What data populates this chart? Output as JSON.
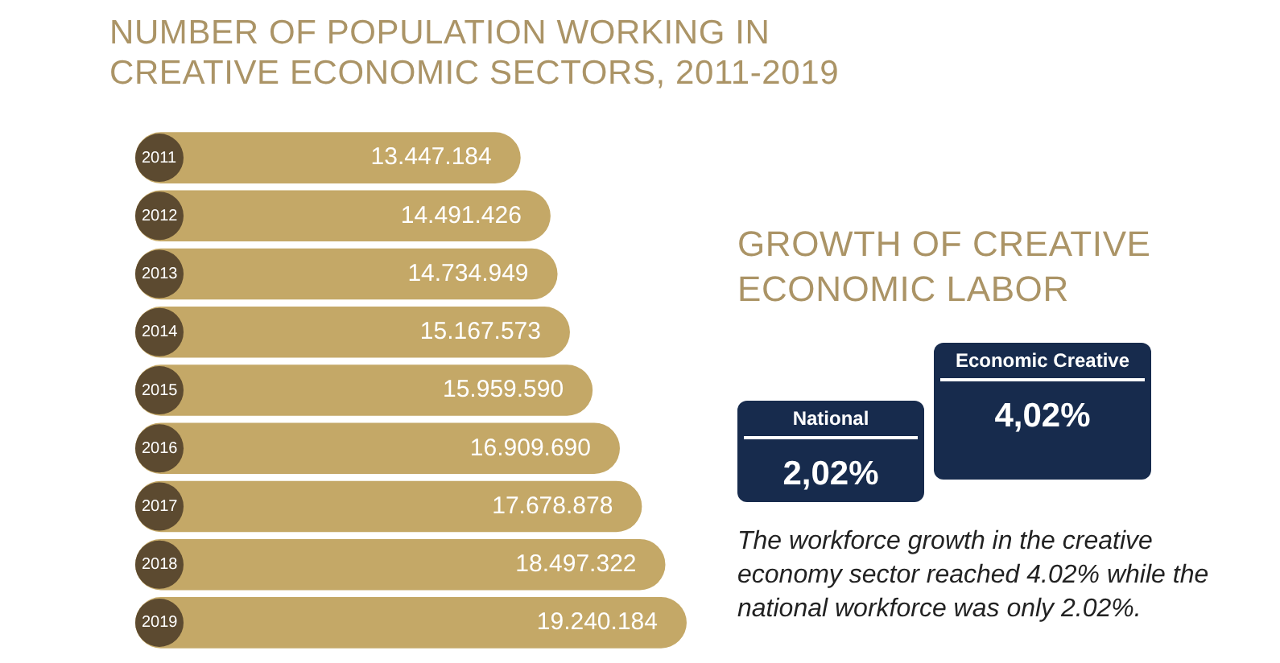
{
  "chart_data": [
    {
      "type": "bar",
      "orientation": "horizontal",
      "title": "NUMBER OF POPULATION WORKING IN CREATIVE ECONOMIC SECTORS, 2011-2019",
      "categories": [
        "2011",
        "2012",
        "2013",
        "2014",
        "2015",
        "2016",
        "2017",
        "2018",
        "2019"
      ],
      "values": [
        13447184,
        14491426,
        14734949,
        15167573,
        15959590,
        16909690,
        17678878,
        18497322,
        19240184
      ],
      "value_labels": [
        "13.447.184",
        "14.491.426",
        "14.734.949",
        "15.167.573",
        "15.959.590",
        "16.909.690",
        "17.678.878",
        "18.497.322",
        "19.240.184"
      ],
      "color": "#c4a867",
      "tick_labels": "y"
    },
    {
      "type": "other",
      "title": "GROWTH OF CREATIVE ECONOMIC LABOR",
      "categories": [
        "National",
        "Economic Creative"
      ],
      "values": [
        2.02,
        4.02
      ],
      "value_labels": [
        "2,02%",
        "4,02%"
      ],
      "colors": [
        "#172b4d",
        "#172b4d"
      ],
      "annotations": [
        "The workforce growth in the creative economy sector reached 4.02% while the national workforce was only 2.02%."
      ]
    }
  ]
}
